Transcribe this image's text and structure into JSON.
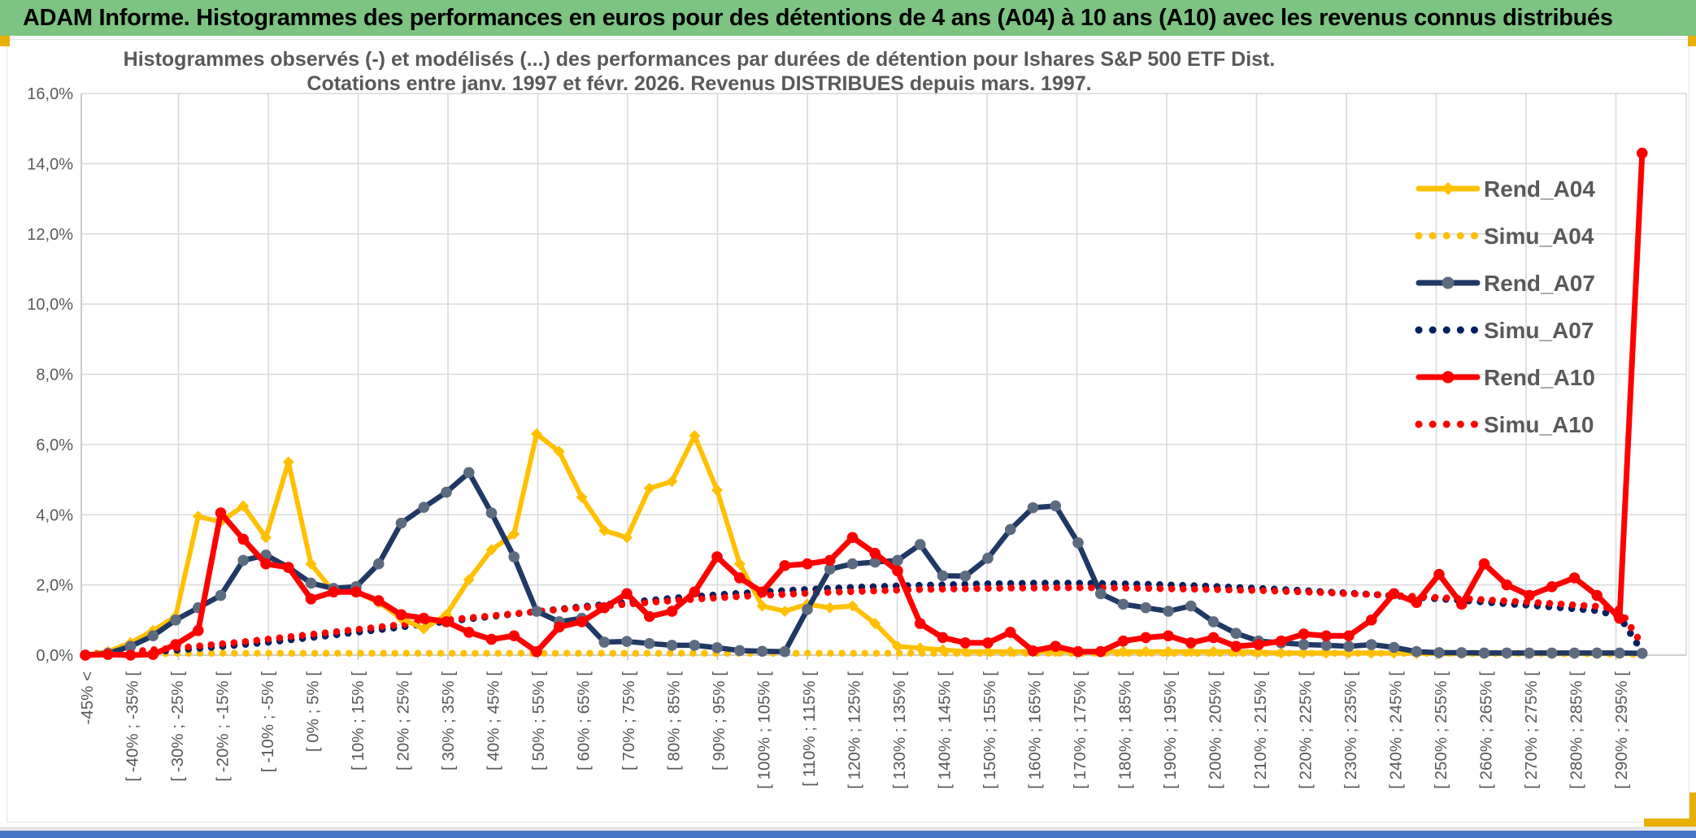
{
  "header": {
    "title": "ADAM Informe. Histogrammes des performances en euros pour des détentions de 4 ans (A04) à 10 ans (A10) avec les revenus connus distribués"
  },
  "colors": {
    "header_green": "#7dc382",
    "accent_gold": "#e8b007",
    "bottom_blue": "#4472c4",
    "grid": "#d9d9d9",
    "axis": "#bfbfbf",
    "text_gray": "#595959",
    "series_yellow": "#ffc000",
    "series_navy": "#1f3864",
    "series_red": "#ff0000",
    "navy_marker": "#5d6b80"
  },
  "chart_data": {
    "type": "line",
    "title": "Histogrammes observés (-) et modélisés (...) des performances par durées de détention pour Ishares S&P 500 ETF Dist.",
    "subtitle": "Cotations entre janv. 1997 et févr. 2026. Revenus DISTRIBUES depuis mars. 1997.",
    "xlabel": "",
    "ylabel": "",
    "ylim": [
      0,
      16
    ],
    "ytick_step_pct": 2,
    "ytick_labels": [
      "0,0%",
      "2,0%",
      "4,0%",
      "6,0%",
      "8,0%",
      "10,0%",
      "12,0%",
      "14,0%",
      "16,0%"
    ],
    "grid": true,
    "legend_position": "right-top",
    "x_bin_width_pct": 5,
    "x_points_count": 70,
    "x_labels_every_points": 2,
    "x_gridline_every_points": 4,
    "x_tick_labels": [
      "-45% <",
      "[ -40% ; -35% [",
      "[ -30% ; -25% [",
      "[ -20% ; -15% [",
      "[ -10% ; -5% [",
      "[ 0% ; 5% [",
      "[ 10% ; 15% [",
      "[ 20% ; 25% [",
      "[ 30% ; 35% [",
      "[ 40% ; 45% [",
      "[ 50% ; 55% [",
      "[ 60% ; 65% [",
      "[ 70% ; 75% [",
      "[ 80% ; 85% [",
      "[ 90% ; 95% [",
      "[ 100% ; 105% [",
      "[ 110% ; 115% [",
      "[ 120% ; 125% [",
      "[ 130% ; 135% [",
      "[ 140% ; 145% [",
      "[ 150% ; 155% [",
      "[ 160% ; 165% [",
      "[ 170% ; 175% [",
      "[ 180% ; 185% [",
      "[ 190% ; 195% [",
      "[ 200% ; 205% [",
      "[ 210% ; 215% [",
      "[ 220% ; 225% [",
      "[ 230% ; 235% [",
      "[ 240% ; 245% [",
      "[ 250% ; 255% [",
      "[ 260% ; 265% [",
      "[ 270% ; 275% [",
      "[ 280% ; 285% [",
      "[ 290% ; 295% ["
    ],
    "series": [
      {
        "name": "Rend_A04",
        "color": "#ffc000",
        "style": "solid",
        "marker": "diamond",
        "marker_color": "#ffc000",
        "width": 6,
        "values": [
          0.0,
          0.1,
          0.35,
          0.7,
          1.1,
          3.95,
          3.8,
          4.25,
          3.35,
          5.5,
          2.6,
          1.8,
          1.8,
          1.5,
          1.05,
          0.75,
          1.15,
          2.15,
          3.0,
          3.45,
          6.3,
          5.8,
          4.5,
          3.55,
          3.35,
          4.75,
          4.95,
          6.25,
          4.7,
          2.6,
          1.4,
          1.25,
          1.45,
          1.35,
          1.4,
          0.9,
          0.25,
          0.2,
          0.15,
          0.1,
          0.1,
          0.1,
          0.1,
          0.1,
          0.1,
          0.1,
          0.1,
          0.1,
          0.1,
          0.1,
          0.1,
          0.1,
          0.08,
          0.06,
          0.06,
          0.06,
          0.06,
          0.06,
          0.06,
          0.05,
          0.04,
          0.04,
          0.04,
          0.04,
          0.04,
          0.04,
          0.04,
          0.04,
          0.04,
          0.04
        ]
      },
      {
        "name": "Simu_A04",
        "color": "#ffc000",
        "style": "dotted",
        "marker": "none",
        "marker_color": "#ffc000",
        "width": 8,
        "values": [
          0.02,
          0.02,
          0.03,
          0.04,
          0.05,
          0.05,
          0.05,
          0.05,
          0.05,
          0.05,
          0.05,
          0.05,
          0.05,
          0.05,
          0.05,
          0.05,
          0.05,
          0.05,
          0.05,
          0.05,
          0.05,
          0.05,
          0.05,
          0.05,
          0.05,
          0.05,
          0.05,
          0.05,
          0.05,
          0.05,
          0.05,
          0.05,
          0.05,
          0.05,
          0.05,
          0.05,
          0.05,
          0.05,
          0.05,
          0.05,
          0.05,
          0.05,
          0.05,
          0.05,
          0.05,
          0.05,
          0.05,
          0.05,
          0.05,
          0.05,
          0.05,
          0.05,
          0.05,
          0.05,
          0.05,
          0.05,
          0.05,
          0.05,
          0.05,
          0.05,
          0.05,
          0.05,
          0.05,
          0.05,
          0.05,
          0.05,
          0.04,
          0.04,
          0.03,
          0.02
        ]
      },
      {
        "name": "Rend_A07",
        "color": "#1f3864",
        "style": "solid",
        "marker": "circle",
        "marker_color": "#5d6b80",
        "width": 6.5,
        "values": [
          0.0,
          0.05,
          0.25,
          0.55,
          1.0,
          1.35,
          1.7,
          2.7,
          2.85,
          2.5,
          2.05,
          1.9,
          1.95,
          2.6,
          3.76,
          4.21,
          4.64,
          5.2,
          4.05,
          2.8,
          1.25,
          0.95,
          1.05,
          0.37,
          0.39,
          0.33,
          0.28,
          0.28,
          0.21,
          0.13,
          0.11,
          0.1,
          1.3,
          2.45,
          2.6,
          2.65,
          2.7,
          3.15,
          2.26,
          2.25,
          2.76,
          3.58,
          4.2,
          4.25,
          3.2,
          1.75,
          1.45,
          1.35,
          1.25,
          1.4,
          0.95,
          0.62,
          0.4,
          0.35,
          0.3,
          0.28,
          0.25,
          0.3,
          0.22,
          0.1,
          0.07,
          0.07,
          0.06,
          0.06,
          0.06,
          0.06,
          0.06,
          0.06,
          0.06,
          0.05
        ]
      },
      {
        "name": "Simu_A07",
        "color": "#002060",
        "style": "dotted",
        "marker": "none",
        "marker_color": "#002060",
        "width": 8,
        "values": [
          0.02,
          0.04,
          0.06,
          0.1,
          0.14,
          0.19,
          0.24,
          0.3,
          0.36,
          0.43,
          0.5,
          0.57,
          0.65,
          0.72,
          0.8,
          0.88,
          0.96,
          1.03,
          1.1,
          1.17,
          1.24,
          1.31,
          1.38,
          1.44,
          1.5,
          1.56,
          1.62,
          1.67,
          1.72,
          1.76,
          1.8,
          1.84,
          1.87,
          1.9,
          1.93,
          1.95,
          1.97,
          1.99,
          2.0,
          2.02,
          2.03,
          2.04,
          2.05,
          2.05,
          2.05,
          2.04,
          2.03,
          2.02,
          2.0,
          1.98,
          1.96,
          1.93,
          1.9,
          1.87,
          1.84,
          1.8,
          1.77,
          1.73,
          1.69,
          1.65,
          1.6,
          1.56,
          1.51,
          1.46,
          1.42,
          1.37,
          1.32,
          1.27,
          1.1,
          0.1
        ]
      },
      {
        "name": "Rend_A10",
        "color": "#ff0000",
        "style": "solid",
        "marker": "circle",
        "marker_color": "#ff0000",
        "width": 7,
        "values": [
          0.0,
          0.02,
          0.0,
          0.02,
          0.3,
          0.7,
          4.05,
          3.3,
          2.6,
          2.5,
          1.6,
          1.8,
          1.8,
          1.55,
          1.15,
          1.05,
          0.95,
          0.65,
          0.45,
          0.55,
          0.1,
          0.8,
          0.95,
          1.35,
          1.75,
          1.1,
          1.25,
          1.8,
          2.8,
          2.2,
          1.8,
          2.55,
          2.6,
          2.7,
          3.35,
          2.9,
          2.4,
          0.9,
          0.5,
          0.35,
          0.35,
          0.65,
          0.12,
          0.25,
          0.1,
          0.1,
          0.4,
          0.5,
          0.55,
          0.35,
          0.5,
          0.25,
          0.3,
          0.4,
          0.6,
          0.55,
          0.55,
          1.0,
          1.75,
          1.5,
          2.3,
          1.45,
          2.6,
          2.0,
          1.7,
          1.95,
          2.2,
          1.7,
          1.05,
          14.3
        ]
      },
      {
        "name": "Simu_A10",
        "color": "#ff0000",
        "style": "dotted",
        "marker": "none",
        "marker_color": "#ff0000",
        "width": 8,
        "values": [
          0.03,
          0.06,
          0.1,
          0.15,
          0.2,
          0.26,
          0.32,
          0.38,
          0.45,
          0.52,
          0.59,
          0.66,
          0.73,
          0.8,
          0.87,
          0.93,
          1.0,
          1.06,
          1.12,
          1.18,
          1.24,
          1.3,
          1.35,
          1.4,
          1.45,
          1.5,
          1.55,
          1.59,
          1.63,
          1.67,
          1.7,
          1.73,
          1.76,
          1.79,
          1.81,
          1.83,
          1.85,
          1.87,
          1.88,
          1.89,
          1.9,
          1.91,
          1.91,
          1.92,
          1.92,
          1.92,
          1.91,
          1.9,
          1.89,
          1.88,
          1.87,
          1.85,
          1.84,
          1.82,
          1.8,
          1.78,
          1.75,
          1.73,
          1.7,
          1.67,
          1.64,
          1.61,
          1.58,
          1.54,
          1.51,
          1.47,
          1.43,
          1.39,
          1.3,
          0.3
        ]
      }
    ]
  }
}
